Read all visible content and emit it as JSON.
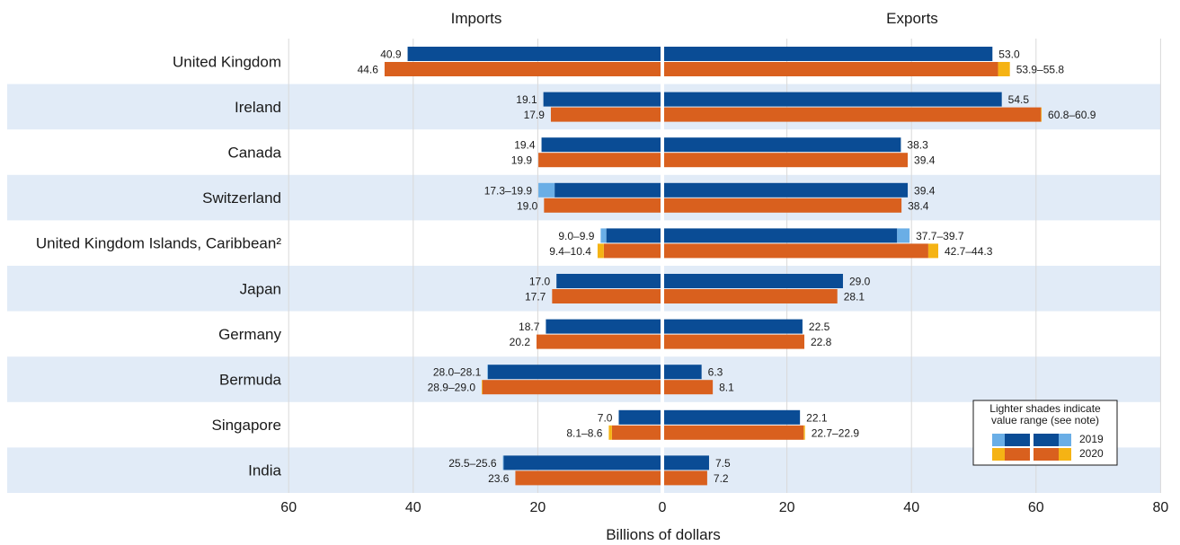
{
  "chart_data": {
    "type": "bar",
    "orientation": "horizontal",
    "headers": {
      "left": "Imports",
      "right": "Exports"
    },
    "xlabel": "Billions of dollars",
    "x_ticks": [
      "60",
      "40",
      "20",
      "0",
      "20",
      "40",
      "60",
      "80"
    ],
    "xlim": {
      "imports": [
        0,
        60
      ],
      "exports": [
        0,
        80
      ]
    },
    "grid": "vertical",
    "colors": {
      "2019": "#0a4c95",
      "2019_range": "#6aaee6",
      "2020": "#d9601e",
      "2020_range": "#f5b314",
      "band": "#e1ebf7"
    },
    "legend": {
      "title_line1": "Lighter shades indicate",
      "title_line2": "value range (see note)",
      "placement": "bottom-right",
      "entries": [
        "2019",
        "2020"
      ]
    },
    "categories": [
      "United Kingdom",
      "Ireland",
      "Canada",
      "Switzerland",
      "United Kingdom Islands, Caribbean²",
      "Japan",
      "Germany",
      "Bermuda",
      "Singapore",
      "India"
    ],
    "rows": [
      {
        "imports": {
          "2019": {
            "low": 40.9,
            "high": 40.9,
            "label": "40.9"
          },
          "2020": {
            "low": 44.6,
            "high": 44.6,
            "label": "44.6"
          }
        },
        "exports": {
          "2019": {
            "low": 53.0,
            "high": 53.0,
            "label": "53.0"
          },
          "2020": {
            "low": 53.9,
            "high": 55.8,
            "label": "53.9–55.8"
          }
        }
      },
      {
        "imports": {
          "2019": {
            "low": 19.1,
            "high": 19.1,
            "label": "19.1"
          },
          "2020": {
            "low": 17.9,
            "high": 17.9,
            "label": "17.9"
          }
        },
        "exports": {
          "2019": {
            "low": 54.5,
            "high": 54.5,
            "label": "54.5"
          },
          "2020": {
            "low": 60.8,
            "high": 60.9,
            "label": "60.8–60.9"
          }
        }
      },
      {
        "imports": {
          "2019": {
            "low": 19.4,
            "high": 19.4,
            "label": "19.4"
          },
          "2020": {
            "low": 19.9,
            "high": 19.9,
            "label": "19.9"
          }
        },
        "exports": {
          "2019": {
            "low": 38.3,
            "high": 38.3,
            "label": "38.3"
          },
          "2020": {
            "low": 39.4,
            "high": 39.4,
            "label": "39.4"
          }
        }
      },
      {
        "imports": {
          "2019": {
            "low": 17.3,
            "high": 19.9,
            "label": "17.3–19.9"
          },
          "2020": {
            "low": 19.0,
            "high": 19.0,
            "label": "19.0"
          }
        },
        "exports": {
          "2019": {
            "low": 39.4,
            "high": 39.4,
            "label": "39.4"
          },
          "2020": {
            "low": 38.4,
            "high": 38.4,
            "label": "38.4"
          }
        }
      },
      {
        "imports": {
          "2019": {
            "low": 9.0,
            "high": 9.9,
            "label": "9.0–9.9"
          },
          "2020": {
            "low": 9.4,
            "high": 10.4,
            "label": "9.4–10.4"
          }
        },
        "exports": {
          "2019": {
            "low": 37.7,
            "high": 39.7,
            "label": "37.7–39.7"
          },
          "2020": {
            "low": 42.7,
            "high": 44.3,
            "label": "42.7–44.3"
          }
        }
      },
      {
        "imports": {
          "2019": {
            "low": 17.0,
            "high": 17.0,
            "label": "17.0"
          },
          "2020": {
            "low": 17.7,
            "high": 17.7,
            "label": "17.7"
          }
        },
        "exports": {
          "2019": {
            "low": 29.0,
            "high": 29.0,
            "label": "29.0"
          },
          "2020": {
            "low": 28.1,
            "high": 28.1,
            "label": "28.1"
          }
        }
      },
      {
        "imports": {
          "2019": {
            "low": 18.7,
            "high": 18.7,
            "label": "18.7"
          },
          "2020": {
            "low": 20.2,
            "high": 20.2,
            "label": "20.2"
          }
        },
        "exports": {
          "2019": {
            "low": 22.5,
            "high": 22.5,
            "label": "22.5"
          },
          "2020": {
            "low": 22.8,
            "high": 22.8,
            "label": "22.8"
          }
        }
      },
      {
        "imports": {
          "2019": {
            "low": 28.0,
            "high": 28.1,
            "label": "28.0–28.1"
          },
          "2020": {
            "low": 28.9,
            "high": 29.0,
            "label": "28.9–29.0"
          }
        },
        "exports": {
          "2019": {
            "low": 6.3,
            "high": 6.3,
            "label": "6.3"
          },
          "2020": {
            "low": 8.1,
            "high": 8.1,
            "label": "8.1"
          }
        }
      },
      {
        "imports": {
          "2019": {
            "low": 7.0,
            "high": 7.0,
            "label": "7.0"
          },
          "2020": {
            "low": 8.1,
            "high": 8.6,
            "label": "8.1–8.6"
          }
        },
        "exports": {
          "2019": {
            "low": 22.1,
            "high": 22.1,
            "label": "22.1"
          },
          "2020": {
            "low": 22.7,
            "high": 22.9,
            "label": "22.7–22.9"
          }
        }
      },
      {
        "imports": {
          "2019": {
            "low": 25.5,
            "high": 25.6,
            "label": "25.5–25.6"
          },
          "2020": {
            "low": 23.6,
            "high": 23.6,
            "label": "23.6"
          }
        },
        "exports": {
          "2019": {
            "low": 7.5,
            "high": 7.5,
            "label": "7.5"
          },
          "2020": {
            "low": 7.2,
            "high": 7.2,
            "label": "7.2"
          }
        }
      }
    ]
  }
}
